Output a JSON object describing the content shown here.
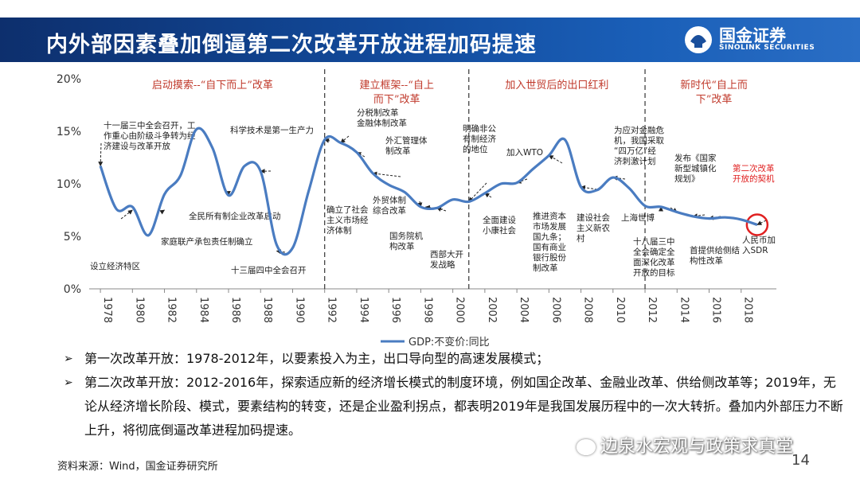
{
  "header": {
    "title": "内外部因素叠加倒逼第二次改革开放进程加码提速",
    "logo_cn": "国金证券",
    "logo_en": "SINOLINK SECURITIES"
  },
  "chart_data": {
    "type": "line",
    "series": [
      {
        "name": "GDP:不变价:同比",
        "x": [
          1978,
          1979,
          1980,
          1981,
          1982,
          1983,
          1984,
          1985,
          1986,
          1987,
          1988,
          1989,
          1990,
          1991,
          1992,
          1993,
          1994,
          1995,
          1996,
          1997,
          1998,
          1999,
          2000,
          2001,
          2002,
          2003,
          2004,
          2005,
          2006,
          2007,
          2008,
          2009,
          2010,
          2011,
          2012,
          2013,
          2014,
          2015,
          2016,
          2017,
          2018,
          2019
        ],
        "values": [
          11.7,
          7.6,
          7.8,
          5.1,
          9.0,
          10.8,
          15.2,
          13.4,
          8.9,
          11.7,
          11.2,
          4.2,
          3.9,
          9.3,
          14.2,
          13.9,
          13.0,
          11.0,
          9.9,
          9.2,
          7.8,
          7.7,
          8.5,
          8.3,
          9.1,
          10.0,
          10.1,
          11.4,
          12.7,
          14.2,
          9.7,
          9.4,
          10.6,
          9.6,
          7.9,
          7.8,
          7.3,
          6.9,
          6.7,
          6.8,
          6.6,
          6.1
        ]
      }
    ],
    "y_ticks": [
      "0%",
      "5%",
      "10%",
      "15%",
      "20%"
    ],
    "x_ticks": [
      "1978",
      "1980",
      "1982",
      "1984",
      "1986",
      "1988",
      "1990",
      "1992",
      "1994",
      "1996",
      "1998",
      "2000",
      "2002",
      "2004",
      "2006",
      "2008",
      "2010",
      "2012",
      "2014",
      "2016",
      "2018"
    ],
    "ylim": [
      0,
      20
    ],
    "xlim": [
      1977.3,
      2020.2
    ],
    "legend_label": "GDP:不变价:同比",
    "legend_position": "bottom-center",
    "line_color": "#4a7cc1",
    "phase_boundaries": [
      1992,
      2001,
      2012
    ],
    "phases": [
      {
        "label": "启动摸索--“自下而上”改革",
        "year": 1985
      },
      {
        "label": "建立框架--“自上而下”改革",
        "year": 1996.5
      },
      {
        "label": "加入世贸后的出口红利",
        "year": 2006.5
      },
      {
        "label": "新时代“自上而下”改革",
        "year": 2016.3
      }
    ],
    "annotations": [
      {
        "text": "十一届三中全会召开，工作重心由阶级斗争转为经济建设与改革开放",
        "year": 1978,
        "value": 11.7
      },
      {
        "text": "设立经济特区",
        "year": 1980,
        "value": 7.5
      },
      {
        "text": "家庭联产承包责任制确立",
        "year": 1982,
        "value": 7.5
      },
      {
        "text": "全民所有制企业改革启动",
        "year": 1986,
        "value": 8.9
      },
      {
        "text": "科学技术是第一生产力",
        "year": 1988,
        "value": 11.2
      },
      {
        "text": "十三届四中全会召开",
        "year": 1989,
        "value": 3.6
      },
      {
        "text": "确立了社会主义市场经济体制",
        "year": 1992,
        "value": 14.2
      },
      {
        "text": "分税制改革金融体制改革",
        "year": 1993,
        "value": 13.9
      },
      {
        "text": "外汇管理体制改革",
        "year": 1995,
        "value": 11.0
      },
      {
        "text": "外贸体制综合改革",
        "year": 1994,
        "value": 13.0
      },
      {
        "text": "国务院机构改革",
        "year": 1998,
        "value": 7.8
      },
      {
        "text": "明确非公有制经济的地位",
        "year": 1998.3,
        "value": 7.8
      },
      {
        "text": "西部大开发战略",
        "year": 1999,
        "value": 7.7
      },
      {
        "text": "加入WTO",
        "year": 2001,
        "value": 8.3
      },
      {
        "text": "全面建设小康社会",
        "year": 2002,
        "value": 9.1
      },
      {
        "text": "推进资本市场发展国九条；国有商业银行股份制改革",
        "year": 2004,
        "value": 10.1
      },
      {
        "text": "建设社会主义新农村",
        "year": 2006,
        "value": 12.7
      },
      {
        "text": "为应对金融危机，我国采取“四万亿”经济刺激计划",
        "year": 2008,
        "value": 9.7
      },
      {
        "text": "上海世博",
        "year": 2010,
        "value": 10.6
      },
      {
        "text": "十八届三中全会确定全面深化改革开放的目标",
        "year": 2013,
        "value": 7.8
      },
      {
        "text": "发布《国家新型城镇化规划》",
        "year": 2014,
        "value": 7.3
      },
      {
        "text": "首提供给侧结构性改革",
        "year": 2015,
        "value": 6.9
      },
      {
        "text": "人民币加入SDR",
        "year": 2016,
        "value": 6.7
      },
      {
        "text": "第二次改革开放的契机",
        "year": 2019,
        "value": 6.1
      }
    ]
  },
  "notes": [
    {
      "bullet": "➢",
      "text": "第一次改革开放：1978-2012年，以要素投入为主，出口导向型的高速发展模式；"
    },
    {
      "bullet": "➢",
      "text": "第二次改革开放：2012-2016年，探索适应新的经济增长模式的制度环境，例如国企改革、金融业改革、供给侧改革等；2019年，无论从经济增长阶段、模式，要素结构的转变，还是企业盈利拐点，都表明2019年是我国发展历程中的一次大转折。叠加内外部压力不断上升，将彻底倒逼改革进程加码提速。"
    }
  ],
  "source": "资料来源：Wind，国金证券研究所",
  "watermark": "边泉水宏观与政策求真堂",
  "page_number": "14",
  "colors": {
    "header_dark": "#0d2f6d",
    "header_light": "#2a6ec5",
    "phase_label": "#c0392b",
    "highlight_circle": "#e02020"
  }
}
